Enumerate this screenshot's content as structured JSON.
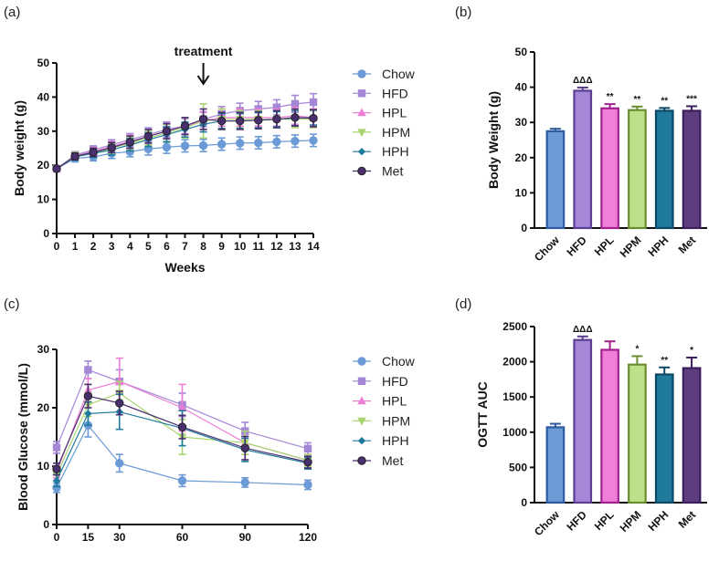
{
  "chart_data": [
    {
      "panel": "(a)",
      "type": "line",
      "xlabel": "Weeks",
      "ylabel": "Body weight (g)",
      "xlim": [
        0,
        14
      ],
      "ylim": [
        0,
        50
      ],
      "x_ticks": [
        0,
        1,
        2,
        3,
        4,
        5,
        6,
        7,
        8,
        9,
        10,
        11,
        12,
        13,
        14
      ],
      "y_ticks": [
        0,
        10,
        20,
        30,
        40,
        50
      ],
      "annotation": {
        "text": "treatment",
        "x": 8
      },
      "x": [
        0,
        1,
        2,
        3,
        4,
        5,
        6,
        7,
        8,
        9,
        10,
        11,
        12,
        13,
        14
      ],
      "series": [
        {
          "name": "Chow",
          "marker": "circle",
          "color": "#6b9ad6",
          "values": [
            19,
            22,
            22.5,
            23.5,
            24,
            24.8,
            25.3,
            25.7,
            25.8,
            26.2,
            26.5,
            26.6,
            26.9,
            27.1,
            27.3
          ],
          "errors": [
            0.5,
            1,
            1.2,
            1.5,
            1.5,
            1.8,
            1.8,
            1.8,
            1.8,
            1.8,
            1.8,
            1.8,
            1.8,
            1.8,
            1.8
          ]
        },
        {
          "name": "HFD",
          "marker": "square",
          "color": "#a487d6",
          "values": [
            19,
            23,
            24.5,
            26,
            27.5,
            29,
            30.5,
            31.5,
            33.5,
            35,
            36,
            36.5,
            37,
            38,
            38.5
          ],
          "errors": [
            0.5,
            1,
            1.2,
            1.5,
            1.8,
            2,
            2.2,
            2.2,
            2.2,
            2.2,
            2.2,
            2.2,
            2.2,
            2.5,
            2.5
          ]
        },
        {
          "name": "HPL",
          "marker": "triangle",
          "color": "#ec7ed6",
          "values": [
            19,
            22.8,
            24,
            25.5,
            27,
            28.5,
            30,
            31.5,
            33,
            34,
            34,
            34,
            34,
            34.5,
            34
          ],
          "errors": [
            0.5,
            1,
            1.2,
            1.5,
            1.8,
            2,
            2.2,
            2.5,
            2.5,
            2.5,
            2.5,
            2.5,
            2.5,
            2.5,
            2.5
          ]
        },
        {
          "name": "HPM",
          "marker": "tri-down",
          "color": "#a9d46f",
          "values": [
            19,
            22.8,
            23.5,
            25,
            26.5,
            28,
            29.5,
            31,
            33,
            33.5,
            33.5,
            33.5,
            33.5,
            33.5,
            33.5
          ],
          "errors": [
            0.5,
            1,
            1.2,
            1.5,
            1.8,
            2,
            2.5,
            3,
            5,
            3,
            2.5,
            2.5,
            2.5,
            2.5,
            2.5
          ]
        },
        {
          "name": "HPH",
          "marker": "diamond",
          "color": "#1f7a9c",
          "values": [
            19,
            22.5,
            23.5,
            24.5,
            26,
            27.5,
            29,
            30.5,
            32,
            33,
            33,
            33.2,
            33.5,
            33.8,
            34
          ],
          "errors": [
            0.5,
            1,
            1.2,
            1.5,
            1.8,
            2,
            2.2,
            2.2,
            2.2,
            2.2,
            2.2,
            2.2,
            2.2,
            2.2,
            2.2
          ]
        },
        {
          "name": "Met",
          "marker": "circle",
          "color": "#4a2f6e",
          "values": [
            19,
            22.6,
            23.8,
            25.2,
            26.8,
            28.5,
            30,
            31.5,
            33.5,
            33,
            33,
            33.2,
            33.5,
            34,
            33.8
          ],
          "errors": [
            0.5,
            1,
            1.2,
            1.5,
            1.8,
            2,
            2.2,
            2.5,
            3,
            2.5,
            2.5,
            2.5,
            2.5,
            2.5,
            2.5
          ]
        }
      ]
    },
    {
      "panel": "(b)",
      "type": "bar",
      "ylabel": "Body Weight (g)",
      "ylim": [
        0,
        50
      ],
      "y_ticks": [
        0,
        10,
        20,
        30,
        40,
        50
      ],
      "categories": [
        "Chow",
        "HFD",
        "HPL",
        "HPM",
        "HPH",
        "Met"
      ],
      "values": [
        27.5,
        39,
        34,
        33.5,
        33.3,
        33.3
      ],
      "errors": [
        0.7,
        0.9,
        1.2,
        1.0,
        0.8,
        1.3
      ],
      "significance": [
        "",
        "ΔΔΔ",
        "**",
        "**",
        "**",
        "***"
      ],
      "fill_colors": [
        "#6b9ad6",
        "#a487d6",
        "#ef7fd9",
        "#bfe08a",
        "#1f7a9c",
        "#5e3d7e"
      ],
      "edge_colors": [
        "#2d5aa0",
        "#5b3d91",
        "#a3208f",
        "#6a8e2f",
        "#0b4866",
        "#3b1e5c"
      ]
    },
    {
      "panel": "(c)",
      "type": "line",
      "xlabel": "",
      "ylabel": "Blood Glucose (mmol/L)",
      "xlim": [
        0,
        120
      ],
      "ylim": [
        0,
        30
      ],
      "x_ticks": [
        0,
        15,
        30,
        60,
        90,
        120
      ],
      "y_ticks": [
        0,
        10,
        20,
        30
      ],
      "x": [
        0,
        15,
        30,
        60,
        90,
        120
      ],
      "series": [
        {
          "name": "Chow",
          "marker": "circle",
          "color": "#6b9ad6",
          "values": [
            6.3,
            17,
            10.5,
            7.5,
            7.2,
            6.8
          ],
          "errors": [
            0.8,
            2,
            1.5,
            1,
            0.8,
            0.8
          ]
        },
        {
          "name": "HFD",
          "marker": "square",
          "color": "#a487d6",
          "values": [
            13.2,
            26.5,
            24.5,
            20.5,
            16,
            13
          ],
          "errors": [
            1,
            1.5,
            2,
            2,
            1.5,
            1
          ]
        },
        {
          "name": "HPL",
          "marker": "triangle",
          "color": "#ec7ed6",
          "values": [
            9,
            23,
            24.5,
            20,
            14,
            11
          ],
          "errors": [
            1,
            2,
            4,
            4,
            2,
            1
          ]
        },
        {
          "name": "HPM",
          "marker": "tri-down",
          "color": "#a9d46f",
          "values": [
            8.5,
            20.5,
            22.5,
            15,
            14,
            11
          ],
          "errors": [
            1,
            2,
            2,
            3,
            2,
            1
          ]
        },
        {
          "name": "HPH",
          "marker": "diamond",
          "color": "#1f7a9c",
          "values": [
            7.5,
            19,
            19.3,
            16.5,
            12.8,
            10.5
          ],
          "errors": [
            1,
            2,
            3,
            3,
            2,
            1
          ]
        },
        {
          "name": "Met",
          "marker": "circle",
          "color": "#4a2f6e",
          "values": [
            9.5,
            22,
            20.8,
            16.7,
            13.1,
            10.7
          ],
          "errors": [
            1,
            2,
            2,
            2,
            2,
            1
          ]
        }
      ]
    },
    {
      "panel": "(d)",
      "type": "bar",
      "ylabel": "OGTT AUC",
      "ylim": [
        0,
        2500
      ],
      "y_ticks": [
        0,
        500,
        1000,
        1500,
        2000,
        2500
      ],
      "categories": [
        "Chow",
        "HFD",
        "HPL",
        "HPM",
        "HPH",
        "Met"
      ],
      "values": [
        1070,
        2310,
        2170,
        1960,
        1820,
        1910
      ],
      "errors": [
        50,
        50,
        120,
        120,
        100,
        150
      ],
      "significance": [
        "",
        "ΔΔΔ",
        "",
        "*",
        "**",
        "*"
      ],
      "fill_colors": [
        "#6b9ad6",
        "#a487d6",
        "#ef7fd9",
        "#bfe08a",
        "#1f7a9c",
        "#5e3d7e"
      ],
      "edge_colors": [
        "#2d5aa0",
        "#5b3d91",
        "#a3208f",
        "#6a8e2f",
        "#0b4866",
        "#3b1e5c"
      ]
    }
  ]
}
